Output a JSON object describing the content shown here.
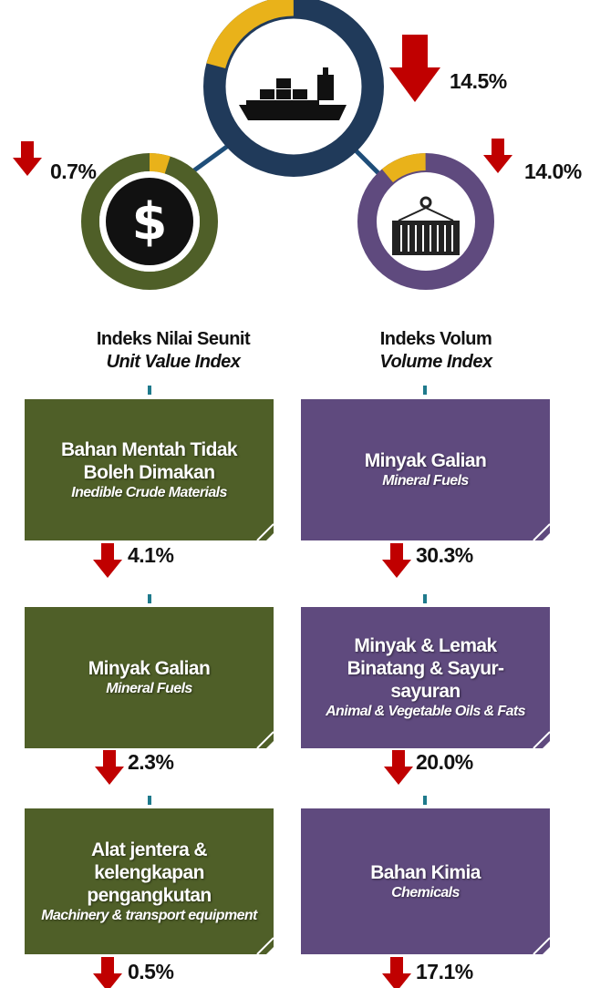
{
  "top": {
    "change": "14.5%"
  },
  "left": {
    "change": "0.7%",
    "title": "Indeks Nilai Seunit",
    "subtitle": "Unit Value Index",
    "items": [
      {
        "title": "Bahan Mentah Tidak Boleh Dimakan",
        "subtitle": "Inedible Crude Materials",
        "change": "4.1%"
      },
      {
        "title": "Minyak Galian",
        "subtitle": "Mineral Fuels",
        "change": "2.3%"
      },
      {
        "title": "Alat jentera & kelengkapan pengangkutan",
        "subtitle": "Machinery & transport equipment",
        "change": "0.5%"
      }
    ]
  },
  "right": {
    "change": "14.0%",
    "title": "Indeks Volum",
    "subtitle": "Volume Index",
    "items": [
      {
        "title": "Minyak Galian",
        "subtitle": "Mineral Fuels",
        "change": "30.3%"
      },
      {
        "title": "Minyak & Lemak Binatang & Sayur-sayuran",
        "subtitle": "Animal & Vegetable Oils & Fats",
        "change": "20.0%"
      },
      {
        "title": "Bahan Kimia",
        "subtitle": "Chemicals",
        "change": "17.1%"
      }
    ]
  }
}
